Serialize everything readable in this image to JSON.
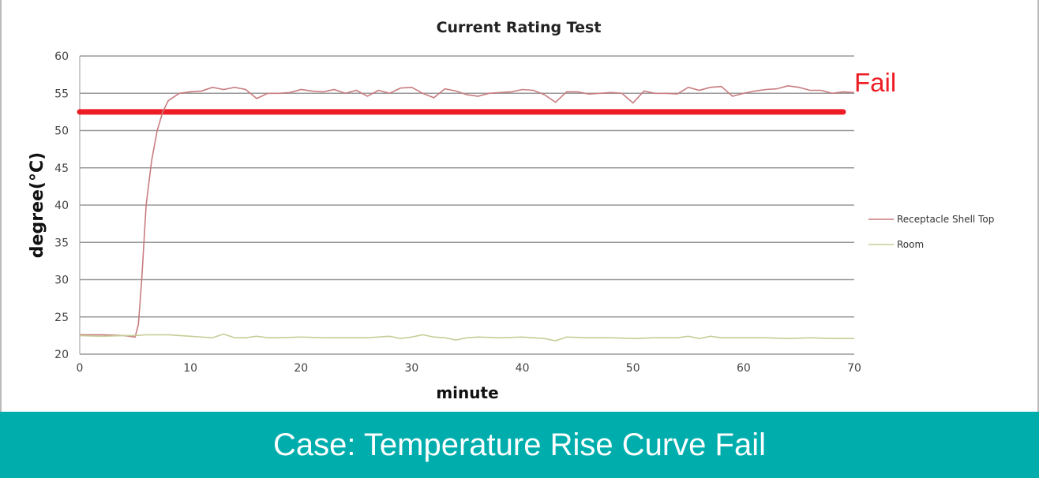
{
  "chart_data": {
    "type": "line",
    "title": "Current Rating Test",
    "xlabel": "minute",
    "ylabel": "degree(°C)",
    "xlim": [
      0,
      70
    ],
    "ylim": [
      20,
      60
    ],
    "xticks": [
      0,
      10,
      20,
      30,
      40,
      50,
      60,
      70
    ],
    "yticks": [
      20,
      25,
      30,
      35,
      40,
      45,
      50,
      55,
      60
    ],
    "grid": "horizontal",
    "legend_position": "right",
    "series": [
      {
        "name": "Receptacle Shell Top",
        "color": "#c87c80",
        "x": [
          0,
          2,
          4,
          5,
          5.3,
          5.6,
          6,
          6.5,
          7,
          7.5,
          8,
          9,
          10,
          11,
          12,
          13,
          14,
          15,
          16,
          17,
          18,
          19,
          20,
          21,
          22,
          23,
          24,
          25,
          26,
          27,
          28,
          29,
          30,
          31,
          32,
          33,
          34,
          35,
          36,
          37,
          38,
          39,
          40,
          41,
          42,
          43,
          44,
          45,
          46,
          47,
          48,
          49,
          50,
          51,
          52,
          53,
          54,
          55,
          56,
          57,
          58,
          59,
          60,
          61,
          62,
          63,
          64,
          65,
          66,
          67,
          68,
          69,
          70
        ],
        "y": [
          22.6,
          22.6,
          22.5,
          22.3,
          24,
          30,
          40,
          46,
          50,
          52.5,
          54,
          55,
          55.2,
          55.3,
          55.8,
          55.5,
          55.8,
          55.5,
          54.3,
          55,
          55,
          55.1,
          55.5,
          55.3,
          55.2,
          55.5,
          55,
          55.4,
          54.6,
          55.4,
          55,
          55.7,
          55.8,
          55,
          54.4,
          55.6,
          55.3,
          54.8,
          54.6,
          55,
          55.1,
          55.2,
          55.5,
          55.4,
          54.8,
          53.8,
          55.2,
          55.2,
          54.9,
          55,
          55.1,
          55,
          53.7,
          55.3,
          55,
          55,
          54.9,
          55.8,
          55.4,
          55.8,
          55.9,
          54.6,
          55,
          55.3,
          55.5,
          55.6,
          56,
          55.8,
          55.4,
          55.4,
          55,
          55.2,
          55.1
        ]
      },
      {
        "name": "Room",
        "color": "#c8cc96",
        "x": [
          0,
          2,
          4,
          5,
          6,
          8,
          10,
          12,
          13,
          14,
          15,
          16,
          17,
          18,
          20,
          22,
          24,
          26,
          28,
          29,
          30,
          31,
          32,
          33,
          34,
          35,
          36,
          38,
          40,
          42,
          43,
          44,
          46,
          48,
          50,
          52,
          54,
          55,
          56,
          57,
          58,
          60,
          62,
          64,
          66,
          68,
          70
        ],
        "y": [
          22.5,
          22.4,
          22.5,
          22.5,
          22.6,
          22.6,
          22.4,
          22.2,
          22.7,
          22.2,
          22.2,
          22.4,
          22.2,
          22.2,
          22.3,
          22.2,
          22.2,
          22.2,
          22.4,
          22.1,
          22.3,
          22.6,
          22.3,
          22.2,
          21.9,
          22.2,
          22.3,
          22.2,
          22.3,
          22.1,
          21.8,
          22.3,
          22.2,
          22.2,
          22.1,
          22.2,
          22.2,
          22.4,
          22.1,
          22.4,
          22.2,
          22.2,
          22.2,
          22.1,
          22.2,
          22.1,
          22.1
        ]
      }
    ],
    "threshold": {
      "value": 52.5,
      "x_range": [
        0,
        69
      ],
      "color": "#ee1c24",
      "label": "Fail"
    }
  },
  "banner": {
    "text": "Case: Temperature Rise Curve Fail",
    "color": "#00adad"
  }
}
